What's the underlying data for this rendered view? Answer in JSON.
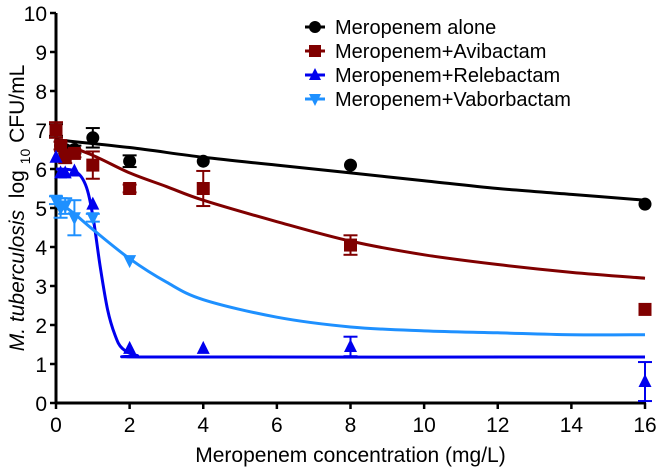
{
  "chart_data": {
    "type": "scatter",
    "title": "",
    "xlabel": "Meropenem concentration (mg/L)",
    "ylabel_italic": "M. tuberculosis",
    "ylabel_log": "log",
    "ylabel_sub": "10",
    "ylabel_rest": " CFU/mL",
    "xlim": [
      0,
      16
    ],
    "ylim": [
      0,
      10
    ],
    "xticks": [
      0,
      2,
      4,
      6,
      8,
      10,
      12,
      14,
      16
    ],
    "yticks": [
      0,
      1,
      2,
      3,
      4,
      5,
      6,
      7,
      8,
      9,
      10
    ],
    "grid": false,
    "legend_position": "top-right",
    "series": [
      {
        "name": "Meropenem alone",
        "color": "#000000",
        "marker": "circle",
        "x": [
          0,
          0.125,
          0.25,
          0.5,
          1,
          2,
          4,
          8,
          16
        ],
        "y": [
          7.0,
          6.6,
          6.5,
          6.5,
          6.8,
          6.2,
          6.2,
          6.1,
          5.1
        ],
        "err": [
          0.15,
          0.1,
          0.1,
          0.1,
          0.25,
          0.15,
          0.05,
          0.05,
          0.05
        ],
        "fit": [
          [
            0,
            6.75
          ],
          [
            2,
            6.55
          ],
          [
            4,
            6.3
          ],
          [
            6,
            6.1
          ],
          [
            8,
            5.9
          ],
          [
            10,
            5.7
          ],
          [
            12,
            5.5
          ],
          [
            14,
            5.35
          ],
          [
            16,
            5.2
          ]
        ]
      },
      {
        "name": "Meropenem+Avibactam",
        "color": "#800000",
        "marker": "square",
        "x": [
          0,
          0.125,
          0.25,
          0.5,
          1,
          2,
          4,
          8,
          16
        ],
        "y": [
          7.0,
          6.6,
          6.3,
          6.4,
          6.1,
          5.5,
          5.5,
          4.05,
          2.4
        ],
        "err": [
          0.2,
          0.1,
          0.15,
          0.1,
          0.35,
          0.1,
          0.45,
          0.25,
          0.05
        ],
        "fit": [
          [
            0,
            6.7
          ],
          [
            1,
            6.35
          ],
          [
            2,
            5.9
          ],
          [
            3,
            5.55
          ],
          [
            4,
            5.2
          ],
          [
            6,
            4.65
          ],
          [
            8,
            4.15
          ],
          [
            10,
            3.8
          ],
          [
            12,
            3.55
          ],
          [
            14,
            3.35
          ],
          [
            16,
            3.2
          ]
        ]
      },
      {
        "name": "Meropenem+Relebactam",
        "color": "#0000ee",
        "marker": "triangle-up",
        "x": [
          0,
          0.125,
          0.25,
          0.5,
          1,
          2,
          4,
          8,
          16
        ],
        "y": [
          6.3,
          5.9,
          5.9,
          5.95,
          5.1,
          1.4,
          1.4,
          1.45,
          0.55
        ],
        "err": [
          0.05,
          0.05,
          0.05,
          0.05,
          0.05,
          0.05,
          0.05,
          0.25,
          0.5
        ],
        "fit": [
          [
            0,
            6.0
          ],
          [
            0.5,
            5.95
          ],
          [
            0.8,
            5.6
          ],
          [
            1.0,
            4.8
          ],
          [
            1.2,
            3.5
          ],
          [
            1.4,
            2.4
          ],
          [
            1.6,
            1.75
          ],
          [
            1.8,
            1.4
          ],
          [
            2.2,
            1.22
          ],
          [
            3,
            1.18
          ],
          [
            16,
            1.18
          ]
        ]
      },
      {
        "name": "Meropenem+Vaborbactam",
        "color": "#1e90ff",
        "marker": "triangle-down",
        "x": [
          0,
          0.125,
          0.25,
          0.5,
          1,
          2
        ],
        "y": [
          5.2,
          5.0,
          5.05,
          4.75,
          4.75,
          3.65
        ],
        "err": [
          0.1,
          0.25,
          0.2,
          0.45,
          0.1,
          0.05
        ],
        "fit": [
          [
            0,
            5.2
          ],
          [
            0.5,
            4.85
          ],
          [
            1,
            4.45
          ],
          [
            2,
            3.7
          ],
          [
            3,
            3.1
          ],
          [
            4,
            2.65
          ],
          [
            6,
            2.2
          ],
          [
            8,
            1.95
          ],
          [
            10,
            1.85
          ],
          [
            12,
            1.8
          ],
          [
            14,
            1.75
          ],
          [
            16,
            1.75
          ]
        ]
      }
    ]
  }
}
